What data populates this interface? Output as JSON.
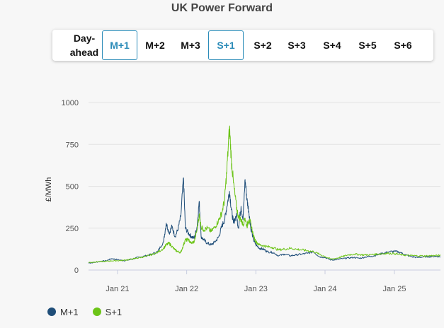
{
  "title": "UK Power Forward",
  "tabs": [
    {
      "label": "Day-ahead",
      "active": false
    },
    {
      "label": "M+1",
      "active": true
    },
    {
      "label": "M+2",
      "active": false
    },
    {
      "label": "M+3",
      "active": false
    },
    {
      "label": "S+1",
      "active": true
    },
    {
      "label": "S+2",
      "active": false
    },
    {
      "label": "S+3",
      "active": false
    },
    {
      "label": "S+4",
      "active": false
    },
    {
      "label": "S+5",
      "active": false
    },
    {
      "label": "S+6",
      "active": false
    }
  ],
  "chart_data": {
    "type": "line",
    "title": "",
    "xlabel": "",
    "ylabel": "£/MWh",
    "ylim": [
      0,
      1000
    ],
    "yticks": [
      0,
      250,
      500,
      750,
      1000
    ],
    "xlim": [
      "2020-08-01",
      "2025-09-01"
    ],
    "xticks": [
      {
        "label": "Jan 21",
        "date": "2021-01-01"
      },
      {
        "label": "Jan 22",
        "date": "2022-01-01"
      },
      {
        "label": "Jan 23",
        "date": "2023-01-01"
      },
      {
        "label": "Jan 24",
        "date": "2024-01-01"
      },
      {
        "label": "Jan 25",
        "date": "2025-01-01"
      }
    ],
    "grid": true,
    "legend_position": "bottom-left",
    "series": [
      {
        "name": "M+1",
        "color": "#1f4e79",
        "points": [
          [
            "2020-08-01",
            42
          ],
          [
            "2020-09-01",
            45
          ],
          [
            "2020-10-01",
            52
          ],
          [
            "2020-11-01",
            55
          ],
          [
            "2020-12-01",
            68
          ],
          [
            "2021-01-01",
            62
          ],
          [
            "2021-02-01",
            56
          ],
          [
            "2021-03-01",
            60
          ],
          [
            "2021-04-01",
            70
          ],
          [
            "2021-05-01",
            78
          ],
          [
            "2021-06-01",
            85
          ],
          [
            "2021-07-01",
            95
          ],
          [
            "2021-08-01",
            110
          ],
          [
            "2021-09-01",
            170
          ],
          [
            "2021-09-15",
            280
          ],
          [
            "2021-10-01",
            220
          ],
          [
            "2021-10-15",
            260
          ],
          [
            "2021-11-01",
            200
          ],
          [
            "2021-11-15",
            240
          ],
          [
            "2021-12-01",
            320
          ],
          [
            "2021-12-15",
            550
          ],
          [
            "2021-12-25",
            250
          ],
          [
            "2022-01-10",
            220
          ],
          [
            "2022-01-25",
            200
          ],
          [
            "2022-02-10",
            190
          ],
          [
            "2022-02-25",
            260
          ],
          [
            "2022-03-08",
            410
          ],
          [
            "2022-03-18",
            200
          ],
          [
            "2022-04-01",
            180
          ],
          [
            "2022-04-20",
            160
          ],
          [
            "2022-05-10",
            150
          ],
          [
            "2022-06-01",
            170
          ],
          [
            "2022-06-20",
            200
          ],
          [
            "2022-07-05",
            260
          ],
          [
            "2022-07-20",
            300
          ],
          [
            "2022-08-01",
            380
          ],
          [
            "2022-08-15",
            470
          ],
          [
            "2022-08-25",
            360
          ],
          [
            "2022-09-05",
            280
          ],
          [
            "2022-09-20",
            330
          ],
          [
            "2022-10-01",
            250
          ],
          [
            "2022-10-15",
            380
          ],
          [
            "2022-10-25",
            300
          ],
          [
            "2022-11-05",
            540
          ],
          [
            "2022-11-15",
            420
          ],
          [
            "2022-11-25",
            350
          ],
          [
            "2022-12-05",
            250
          ],
          [
            "2022-12-20",
            180
          ],
          [
            "2023-01-01",
            150
          ],
          [
            "2023-01-20",
            130
          ],
          [
            "2023-02-10",
            125
          ],
          [
            "2023-03-01",
            110
          ],
          [
            "2023-04-01",
            105
          ],
          [
            "2023-05-01",
            85
          ],
          [
            "2023-06-01",
            95
          ],
          [
            "2023-07-01",
            85
          ],
          [
            "2023-08-01",
            90
          ],
          [
            "2023-09-01",
            95
          ],
          [
            "2023-10-01",
            100
          ],
          [
            "2023-11-01",
            110
          ],
          [
            "2023-12-01",
            80
          ],
          [
            "2024-01-01",
            75
          ],
          [
            "2024-02-01",
            60
          ],
          [
            "2024-03-01",
            62
          ],
          [
            "2024-04-01",
            68
          ],
          [
            "2024-05-01",
            72
          ],
          [
            "2024-06-01",
            75
          ],
          [
            "2024-07-01",
            70
          ],
          [
            "2024-08-01",
            78
          ],
          [
            "2024-09-01",
            82
          ],
          [
            "2024-10-01",
            90
          ],
          [
            "2024-11-01",
            100
          ],
          [
            "2024-12-01",
            108
          ],
          [
            "2025-01-01",
            112
          ],
          [
            "2025-02-01",
            105
          ],
          [
            "2025-03-01",
            90
          ],
          [
            "2025-04-01",
            80
          ],
          [
            "2025-05-01",
            75
          ],
          [
            "2025-06-01",
            78
          ],
          [
            "2025-07-01",
            80
          ],
          [
            "2025-08-01",
            82
          ],
          [
            "2025-09-01",
            80
          ]
        ]
      },
      {
        "name": "S+1",
        "color": "#6cc417",
        "points": [
          [
            "2020-08-01",
            45
          ],
          [
            "2020-09-01",
            48
          ],
          [
            "2020-10-01",
            50
          ],
          [
            "2020-11-01",
            52
          ],
          [
            "2020-12-01",
            55
          ],
          [
            "2021-01-01",
            56
          ],
          [
            "2021-02-01",
            58
          ],
          [
            "2021-03-01",
            62
          ],
          [
            "2021-04-01",
            68
          ],
          [
            "2021-05-01",
            75
          ],
          [
            "2021-06-01",
            82
          ],
          [
            "2021-07-01",
            92
          ],
          [
            "2021-08-01",
            105
          ],
          [
            "2021-09-01",
            130
          ],
          [
            "2021-09-15",
            150
          ],
          [
            "2021-10-01",
            160
          ],
          [
            "2021-10-15",
            140
          ],
          [
            "2021-11-01",
            120
          ],
          [
            "2021-11-15",
            110
          ],
          [
            "2021-12-01",
            105
          ],
          [
            "2021-12-15",
            150
          ],
          [
            "2021-12-25",
            180
          ],
          [
            "2022-01-10",
            180
          ],
          [
            "2022-01-25",
            160
          ],
          [
            "2022-02-10",
            170
          ],
          [
            "2022-02-25",
            240
          ],
          [
            "2022-03-08",
            330
          ],
          [
            "2022-03-18",
            260
          ],
          [
            "2022-04-01",
            240
          ],
          [
            "2022-04-20",
            250
          ],
          [
            "2022-05-10",
            230
          ],
          [
            "2022-06-01",
            260
          ],
          [
            "2022-06-20",
            300
          ],
          [
            "2022-07-05",
            340
          ],
          [
            "2022-07-20",
            420
          ],
          [
            "2022-08-01",
            600
          ],
          [
            "2022-08-15",
            850
          ],
          [
            "2022-08-25",
            650
          ],
          [
            "2022-09-05",
            520
          ],
          [
            "2022-09-20",
            380
          ],
          [
            "2022-10-01",
            320
          ],
          [
            "2022-10-15",
            300
          ],
          [
            "2022-10-25",
            270
          ],
          [
            "2022-11-05",
            310
          ],
          [
            "2022-11-15",
            260
          ],
          [
            "2022-11-25",
            300
          ],
          [
            "2022-12-05",
            280
          ],
          [
            "2022-12-20",
            200
          ],
          [
            "2023-01-01",
            170
          ],
          [
            "2023-01-20",
            150
          ],
          [
            "2023-02-10",
            145
          ],
          [
            "2023-03-01",
            140
          ],
          [
            "2023-04-01",
            135
          ],
          [
            "2023-05-01",
            120
          ],
          [
            "2023-06-01",
            125
          ],
          [
            "2023-07-01",
            130
          ],
          [
            "2023-08-01",
            125
          ],
          [
            "2023-09-01",
            120
          ],
          [
            "2023-10-01",
            115
          ],
          [
            "2023-11-01",
            110
          ],
          [
            "2023-12-01",
            95
          ],
          [
            "2024-01-01",
            80
          ],
          [
            "2024-02-01",
            65
          ],
          [
            "2024-03-01",
            70
          ],
          [
            "2024-04-01",
            80
          ],
          [
            "2024-05-01",
            90
          ],
          [
            "2024-06-01",
            95
          ],
          [
            "2024-07-01",
            92
          ],
          [
            "2024-08-01",
            90
          ],
          [
            "2024-09-01",
            92
          ],
          [
            "2024-10-01",
            95
          ],
          [
            "2024-11-01",
            98
          ],
          [
            "2024-12-01",
            100
          ],
          [
            "2025-01-01",
            98
          ],
          [
            "2025-02-01",
            92
          ],
          [
            "2025-03-01",
            88
          ],
          [
            "2025-04-01",
            86
          ],
          [
            "2025-05-01",
            85
          ],
          [
            "2025-06-01",
            84
          ],
          [
            "2025-07-01",
            85
          ],
          [
            "2025-08-01",
            86
          ],
          [
            "2025-09-01",
            87
          ]
        ]
      }
    ]
  }
}
